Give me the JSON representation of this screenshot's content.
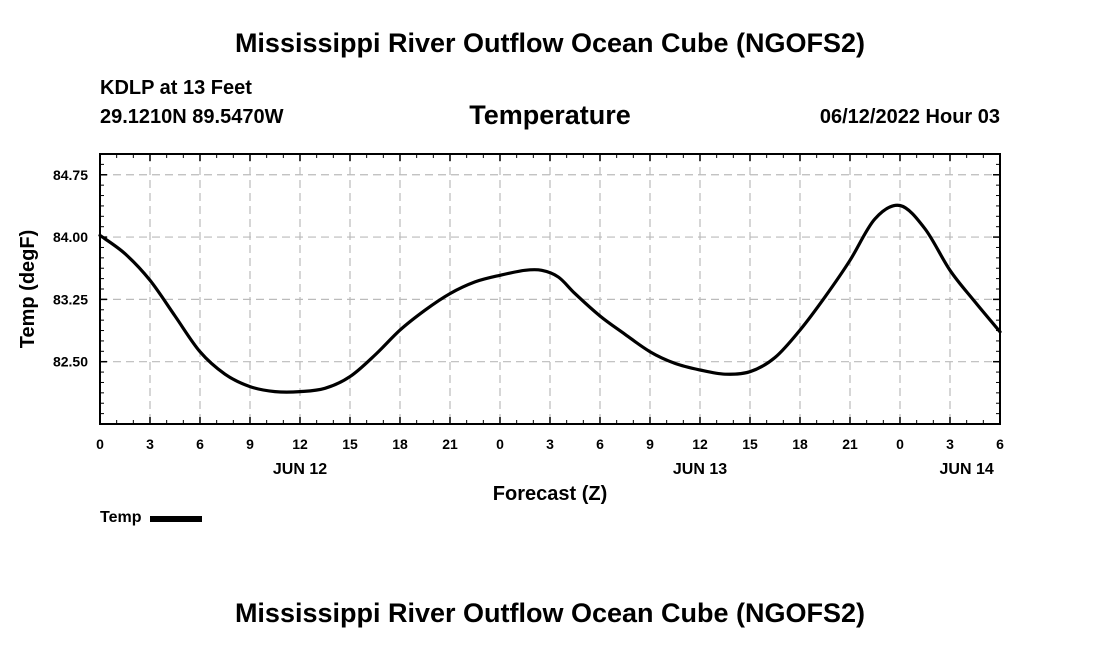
{
  "header": {
    "title": "Mississippi River Outflow Ocean Cube (NGOFS2)",
    "station": "KDLP at 13 Feet",
    "coords": "29.1210N  89.5470W",
    "chart_title": "Temperature",
    "run_date": "06/12/2022 Hour 03"
  },
  "legend": {
    "label": "Temp"
  },
  "footer": {
    "title": "Mississippi River Outflow Ocean Cube (NGOFS2)"
  },
  "colors": {
    "line": "#000000",
    "grid": "#bbbbbb"
  },
  "chart_data": {
    "type": "line",
    "title": "Temperature",
    "xlabel": "Forecast (Z)",
    "ylabel": "Temp (degF)",
    "xlim": [
      0,
      54
    ],
    "ylim": [
      81.75,
      85.0
    ],
    "grid": true,
    "x_tick_values": [
      0,
      3,
      6,
      9,
      12,
      15,
      18,
      21,
      24,
      27,
      30,
      33,
      36,
      39,
      42,
      45,
      48,
      51,
      54
    ],
    "x_tick_labels": [
      "0",
      "3",
      "6",
      "9",
      "12",
      "15",
      "18",
      "21",
      "0",
      "3",
      "6",
      "9",
      "12",
      "15",
      "18",
      "21",
      "0",
      "3",
      "6"
    ],
    "date_labels": [
      {
        "x": 12,
        "label": "JUN 12"
      },
      {
        "x": 36,
        "label": "JUN 13"
      },
      {
        "x": 52,
        "label": "JUN 14"
      }
    ],
    "y_tick_values": [
      82.5,
      83.25,
      84.0,
      84.75
    ],
    "y_tick_labels": [
      "82.50",
      "83.25",
      "84.00",
      "84.75"
    ],
    "series": [
      {
        "name": "Temp",
        "x": [
          0,
          1.5,
          3,
          4.5,
          6,
          7.5,
          9,
          10.5,
          12,
          13.5,
          15,
          16.5,
          18,
          19.5,
          21,
          22.5,
          24,
          25.5,
          26.5,
          27.5,
          28.5,
          30,
          31.5,
          33,
          34.5,
          36,
          37.5,
          39,
          40.5,
          42,
          43.5,
          45,
          46.5,
          48,
          49.5,
          51,
          52.5,
          54
        ],
        "values": [
          84.02,
          83.8,
          83.48,
          83.05,
          82.62,
          82.35,
          82.2,
          82.14,
          82.14,
          82.18,
          82.32,
          82.58,
          82.88,
          83.12,
          83.32,
          83.46,
          83.54,
          83.6,
          83.6,
          83.52,
          83.32,
          83.05,
          82.83,
          82.62,
          82.48,
          82.4,
          82.35,
          82.38,
          82.55,
          82.88,
          83.28,
          83.72,
          84.22,
          84.38,
          84.1,
          83.6,
          83.22,
          82.86
        ]
      }
    ]
  }
}
